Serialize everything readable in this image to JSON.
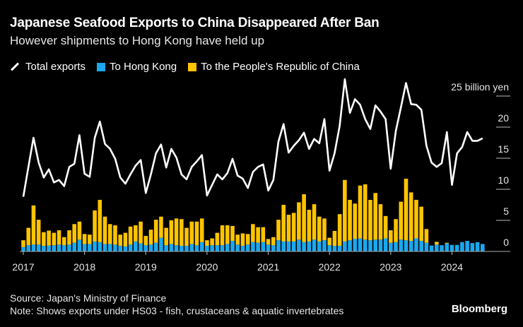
{
  "title": "Japanese Seafood Exports to China Disappeared After Ban",
  "subtitle": "However shipments to Hong Kong have held up",
  "legend": [
    {
      "label": "Total exports",
      "color": "#ffffff",
      "shape": "line"
    },
    {
      "label": "To Hong Kong",
      "color": "#1aa8f0",
      "shape": "square"
    },
    {
      "label": "To the People's Republic of China",
      "color": "#ffc400",
      "shape": "square"
    }
  ],
  "footer": {
    "source": "Source: Japan's Ministry of Finance",
    "note": "Note: Shows exports under HS03 - fish, crustaceans & aquatic invertebrates",
    "brand": "Bloomberg"
  },
  "chart_data": {
    "type": "bar+line",
    "ylim": [
      0,
      25
    ],
    "yunit_label": "25 billion yen",
    "yticks": [
      "0",
      "5",
      "10",
      "15",
      "20"
    ],
    "xticks": [
      "2017",
      "2018",
      "2019",
      "2020",
      "2021",
      "2022",
      "2023",
      "2024"
    ],
    "x": [
      "2017-01",
      "2017-02",
      "2017-03",
      "2017-04",
      "2017-05",
      "2017-06",
      "2017-07",
      "2017-08",
      "2017-09",
      "2017-10",
      "2017-11",
      "2017-12",
      "2018-01",
      "2018-02",
      "2018-03",
      "2018-04",
      "2018-05",
      "2018-06",
      "2018-07",
      "2018-08",
      "2018-09",
      "2018-10",
      "2018-11",
      "2018-12",
      "2019-01",
      "2019-02",
      "2019-03",
      "2019-04",
      "2019-05",
      "2019-06",
      "2019-07",
      "2019-08",
      "2019-09",
      "2019-10",
      "2019-11",
      "2019-12",
      "2020-01",
      "2020-02",
      "2020-03",
      "2020-04",
      "2020-05",
      "2020-06",
      "2020-07",
      "2020-08",
      "2020-09",
      "2020-10",
      "2020-11",
      "2020-12",
      "2021-01",
      "2021-02",
      "2021-03",
      "2021-04",
      "2021-05",
      "2021-06",
      "2021-07",
      "2021-08",
      "2021-09",
      "2021-10",
      "2021-11",
      "2021-12",
      "2022-01",
      "2022-02",
      "2022-03",
      "2022-04",
      "2022-05",
      "2022-06",
      "2022-07",
      "2022-08",
      "2022-09",
      "2022-10",
      "2022-11",
      "2022-12",
      "2023-01",
      "2023-02",
      "2023-03",
      "2023-04",
      "2023-05",
      "2023-06",
      "2023-07",
      "2023-08",
      "2023-09",
      "2023-10",
      "2023-11",
      "2023-12",
      "2024-01",
      "2024-02",
      "2024-03",
      "2024-04",
      "2024-05",
      "2024-06",
      "2024-07"
    ],
    "series": [
      {
        "name": "Total exports",
        "type": "line",
        "color": "#ffffff",
        "values": [
          8.8,
          13.6,
          18.3,
          14.3,
          11.9,
          13.2,
          11.1,
          11.5,
          10.5,
          13.6,
          14.1,
          18.7,
          12.5,
          12.0,
          18.3,
          20.9,
          17.3,
          16.5,
          14.9,
          11.9,
          10.9,
          12.4,
          13.8,
          14.7,
          9.4,
          12.4,
          15.8,
          17.2,
          13.5,
          16.5,
          15.1,
          12.4,
          11.6,
          13.6,
          14.5,
          15.5,
          9.0,
          10.7,
          12.4,
          11.6,
          12.6,
          14.9,
          12.2,
          11.7,
          10.2,
          12.8,
          13.6,
          14.0,
          9.8,
          11.5,
          17.7,
          20.5,
          15.9,
          17.0,
          17.9,
          19.1,
          16.5,
          18.1,
          17.4,
          21.3,
          13.0,
          15.8,
          20.2,
          27.7,
          22.3,
          24.5,
          23.6,
          21.3,
          19.7,
          23.5,
          22.5,
          21.3,
          13.3,
          19.4,
          23.2,
          27.1,
          23.7,
          23.6,
          22.8,
          17.0,
          14.3,
          13.6,
          14.2,
          19.2,
          10.7,
          15.8,
          16.8,
          19.2,
          17.8,
          17.8,
          18.2
        ]
      },
      {
        "name": "To Hong Kong",
        "type": "bar",
        "color": "#1aa8f0",
        "values": [
          0.7,
          1.0,
          1.1,
          1.1,
          0.9,
          0.95,
          1.0,
          1.1,
          1.0,
          1.1,
          1.4,
          1.9,
          1.2,
          1.2,
          1.6,
          1.5,
          1.2,
          1.2,
          1.1,
          0.9,
          0.8,
          1.1,
          1.6,
          1.3,
          1.0,
          1.1,
          1.4,
          2.2,
          1.0,
          1.2,
          1.0,
          0.9,
          0.9,
          1.2,
          1.0,
          1.5,
          0.9,
          1.0,
          1.0,
          1.0,
          1.2,
          1.7,
          1.1,
          0.9,
          1.1,
          1.5,
          1.4,
          1.5,
          1.1,
          1.0,
          1.8,
          1.6,
          1.6,
          1.6,
          1.9,
          1.5,
          1.6,
          1.9,
          1.6,
          1.8,
          1.0,
          0.9,
          0.9,
          1.6,
          1.8,
          2.0,
          2.1,
          1.9,
          1.8,
          1.9,
          1.9,
          2.1,
          1.4,
          1.5,
          1.9,
          1.8,
          1.7,
          2.1,
          1.7,
          1.4,
          0.95,
          1.1,
          1.0,
          1.3,
          1.05,
          1.05,
          1.5,
          1.7,
          1.35,
          1.5,
          1.2
        ]
      },
      {
        "name": "To the People's Republic of China",
        "type": "bar",
        "color": "#ffc400",
        "values": [
          1.1,
          2.8,
          6.3,
          4.0,
          2.2,
          2.4,
          2.0,
          2.3,
          1.3,
          2.3,
          3.0,
          2.9,
          1.6,
          1.5,
          5.0,
          6.8,
          4.4,
          3.2,
          3.1,
          1.8,
          2.2,
          2.9,
          2.6,
          3.5,
          1.5,
          2.4,
          3.7,
          3.4,
          2.8,
          3.8,
          4.3,
          4.3,
          2.9,
          3.6,
          3.8,
          3.8,
          0.9,
          1.1,
          2.0,
          3.2,
          3.0,
          2.4,
          1.6,
          2.0,
          1.7,
          2.9,
          2.5,
          2.4,
          0.9,
          1.3,
          3.3,
          5.9,
          4.3,
          4.6,
          6.0,
          7.7,
          5.1,
          5.7,
          4.0,
          3.5,
          1.2,
          2.4,
          5.1,
          9.9,
          6.5,
          5.7,
          8.5,
          8.9,
          6.5,
          7.5,
          5.7,
          3.6,
          2.0,
          3.7,
          6.1,
          9.9,
          7.8,
          6.2,
          5.5,
          2.2,
          0,
          0.45,
          0,
          0.1,
          0,
          0,
          0,
          0,
          0,
          0,
          0
        ]
      }
    ],
    "stacked": true,
    "grid": false,
    "legend_position": "top-left"
  }
}
